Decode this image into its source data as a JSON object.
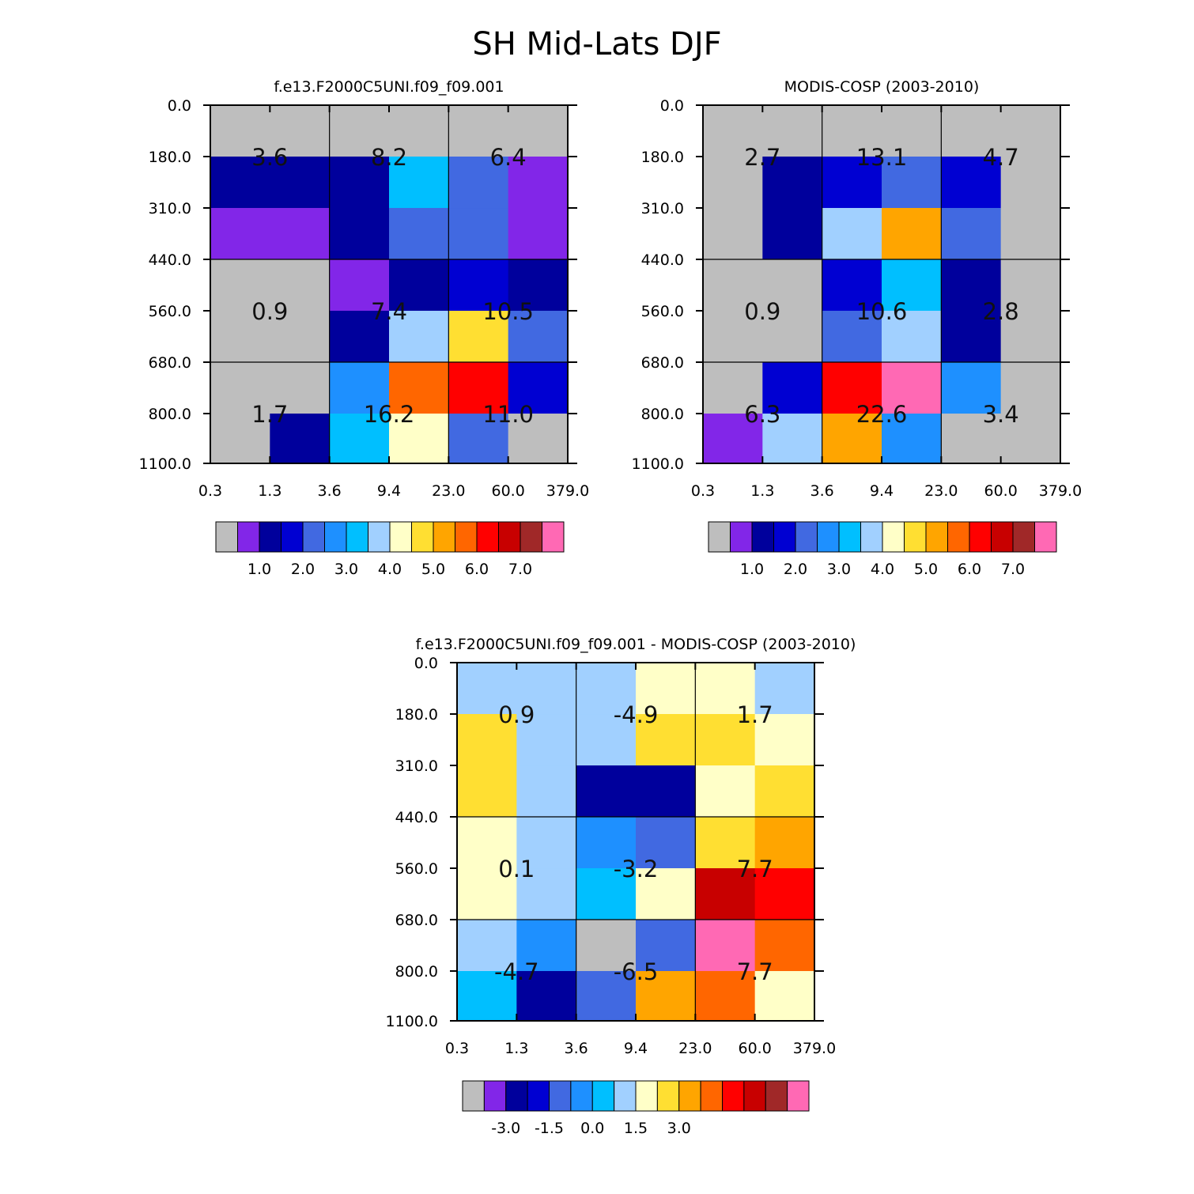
{
  "figure": {
    "title": "SH Mid-Lats DJF"
  },
  "chart_data": [
    {
      "type": "heatmap",
      "title": "f.e13.F2000C5UNI.f09_f09.001",
      "x_ticks": [
        "0.3",
        "1.3",
        "3.6",
        "9.4",
        "23.0",
        "60.0",
        "379.0"
      ],
      "y_ticks": [
        "0.0",
        "180.0",
        "310.0",
        "440.0",
        "560.0",
        "680.0",
        "800.0",
        "1100.0"
      ],
      "levels": [
        1.0,
        1.5,
        2.0,
        2.5,
        3.0,
        3.5,
        4.0,
        4.5,
        5.0,
        5.5,
        6.0,
        6.5,
        7.0,
        7.5
      ],
      "colorbar_labels": [
        "1.0",
        "2.0",
        "3.0",
        "4.0",
        "5.0",
        "6.0",
        "7.0"
      ],
      "cells": [
        [
          0,
          0,
          0,
          0,
          0,
          0
        ],
        [
          2,
          2,
          2,
          6,
          4,
          1
        ],
        [
          1,
          1,
          2,
          4,
          4,
          1
        ],
        [
          0,
          0,
          1,
          2,
          3,
          2
        ],
        [
          0,
          0,
          2,
          7,
          9,
          4
        ],
        [
          0,
          0,
          5,
          11,
          12,
          3
        ],
        [
          0,
          2,
          6,
          8,
          4,
          0
        ]
      ],
      "box_labels": [
        [
          "3.6",
          "8.2",
          "6.4"
        ],
        [
          "0.9",
          "7.4",
          "10.5"
        ],
        [
          "1.7",
          "16.2",
          "11.0"
        ]
      ]
    },
    {
      "type": "heatmap",
      "title": "MODIS-COSP (2003-2010)",
      "x_ticks": [
        "0.3",
        "1.3",
        "3.6",
        "9.4",
        "23.0",
        "60.0",
        "379.0"
      ],
      "y_ticks": [
        "0.0",
        "180.0",
        "310.0",
        "440.0",
        "560.0",
        "680.0",
        "800.0",
        "1100.0"
      ],
      "levels": [
        1.0,
        1.5,
        2.0,
        2.5,
        3.0,
        3.5,
        4.0,
        4.5,
        5.0,
        5.5,
        6.0,
        6.5,
        7.0,
        7.5
      ],
      "colorbar_labels": [
        "1.0",
        "2.0",
        "3.0",
        "4.0",
        "5.0",
        "6.0",
        "7.0"
      ],
      "cells": [
        [
          0,
          0,
          0,
          0,
          0,
          0
        ],
        [
          0,
          2,
          3,
          4,
          3,
          0
        ],
        [
          0,
          2,
          7,
          10,
          4,
          0
        ],
        [
          0,
          0,
          3,
          6,
          2,
          0
        ],
        [
          0,
          0,
          4,
          7,
          2,
          0
        ],
        [
          0,
          3,
          12,
          15,
          5,
          0
        ],
        [
          1,
          7,
          10,
          5,
          0,
          0
        ]
      ],
      "box_labels": [
        [
          "2.7",
          "13.1",
          "4.7"
        ],
        [
          "0.9",
          "10.6",
          "2.8"
        ],
        [
          "6.3",
          "22.6",
          "3.4"
        ]
      ]
    },
    {
      "type": "heatmap",
      "title": "f.e13.F2000C5UNI.f09_f09.001 - MODIS-COSP (2003-2010)",
      "x_ticks": [
        "0.3",
        "1.3",
        "3.6",
        "9.4",
        "23.0",
        "60.0",
        "379.0"
      ],
      "y_ticks": [
        "0.0",
        "180.0",
        "310.0",
        "440.0",
        "560.0",
        "680.0",
        "800.0",
        "1100.0"
      ],
      "levels": [
        -3.0,
        -2.5,
        -2.0,
        -1.5,
        -1.0,
        -0.5,
        0.0,
        0.5,
        1.0,
        1.5,
        2.0,
        2.5,
        3.0,
        3.5
      ],
      "colorbar_labels": [
        "-3.0",
        "-1.5",
        "0.0",
        "1.5",
        "3.0"
      ],
      "cells": [
        [
          7,
          7,
          7,
          8,
          8,
          7
        ],
        [
          9,
          7,
          7,
          9,
          9,
          8
        ],
        [
          9,
          7,
          2,
          2,
          8,
          9
        ],
        [
          8,
          7,
          5,
          4,
          9,
          10
        ],
        [
          8,
          7,
          6,
          8,
          13,
          12
        ],
        [
          7,
          5,
          0,
          4,
          15,
          11
        ],
        [
          6,
          2,
          4,
          10,
          11,
          8
        ]
      ],
      "box_labels": [
        [
          "0.9",
          "-4.9",
          "1.7"
        ],
        [
          "0.1",
          "-3.2",
          "7.7"
        ],
        [
          "-4.7",
          "-6.5",
          "7.7"
        ]
      ]
    }
  ],
  "palette": [
    "#bebebe",
    "#8226e8",
    "#00009c",
    "#0000d2",
    "#4169e1",
    "#1e90ff",
    "#00bfff",
    "#a1d0ff",
    "#ffffc8",
    "#ffdf32",
    "#ffa500",
    "#ff6600",
    "#ff0000",
    "#c80000",
    "#a02828",
    "#ff69b4"
  ]
}
